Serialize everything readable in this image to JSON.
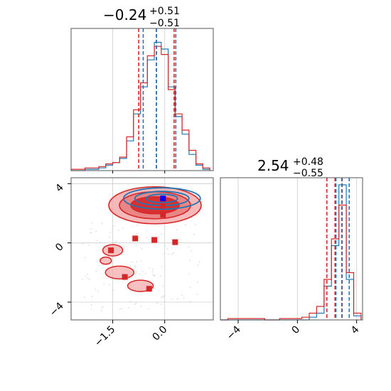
{
  "colors": {
    "red": "#d62728",
    "blue": "#1f77b4",
    "red_fill_light": "#f4a6a6",
    "red_fill_mid": "#e87b7b",
    "red_fill_dark": "#d62728",
    "blue_marker": "#0000ff",
    "grid": "#cccccc",
    "frame": "#555555"
  },
  "chart_data": {
    "type": "corner",
    "parameters": [
      {
        "title_main": "−0.24",
        "title_plus": "+0.51",
        "title_minus": "−0.51",
        "range": [
          -2.7,
          1.4
        ],
        "ticks": [
          -1.5,
          0.0
        ],
        "tick_labels": [
          "−1.5",
          "0.0"
        ],
        "quantiles_red": [
          -0.75,
          -0.24,
          0.27
        ],
        "quantiles_blue": [
          -0.62,
          -0.24,
          0.32
        ],
        "hist_bins_x": [
          -2.7,
          -2.5,
          -2.3,
          -2.1,
          -1.9,
          -1.7,
          -1.5,
          -1.3,
          -1.1,
          -0.9,
          -0.7,
          -0.5,
          -0.3,
          -0.1,
          0.1,
          0.3,
          0.5,
          0.7,
          0.9,
          1.1,
          1.3
        ],
        "hist_red": [
          0.01,
          0.01,
          0.02,
          0.02,
          0.03,
          0.05,
          0.06,
          0.1,
          0.25,
          0.45,
          0.65,
          0.85,
          0.92,
          0.86,
          0.6,
          0.42,
          0.3,
          0.15,
          0.05,
          0.02
        ],
        "hist_blue": [
          0.0,
          0.0,
          0.01,
          0.01,
          0.02,
          0.04,
          0.06,
          0.09,
          0.22,
          0.42,
          0.62,
          0.82,
          0.95,
          0.9,
          0.62,
          0.4,
          0.27,
          0.12,
          0.04,
          0.01
        ]
      },
      {
        "title_main": "2.54",
        "title_plus": "+0.48",
        "title_minus": "−0.55",
        "range": [
          -5.2,
          4.4
        ],
        "ticks": [
          -4,
          0,
          4
        ],
        "tick_labels": [
          "−4",
          "0",
          "4"
        ],
        "quantiles_red": [
          1.99,
          2.54,
          3.02
        ],
        "quantiles_blue": [
          2.6,
          3.0,
          3.5
        ],
        "hist_bins_x": [
          -5.2,
          -4.7,
          -4.2,
          -3.7,
          -3.2,
          -2.7,
          -2.2,
          -1.7,
          -1.2,
          -0.7,
          -0.2,
          0.3,
          0.8,
          1.3,
          1.8,
          2.3,
          2.8,
          3.3,
          3.8,
          4.3
        ],
        "hist_red": [
          0.0,
          0.01,
          0.01,
          0.01,
          0.01,
          0.01,
          0.0,
          0.0,
          0.01,
          0.01,
          0.01,
          0.02,
          0.05,
          0.1,
          0.3,
          0.6,
          0.85,
          0.35,
          0.05
        ],
        "hist_blue": [
          0.0,
          0.0,
          0.0,
          0.0,
          0.0,
          0.0,
          0.0,
          0.0,
          0.0,
          0.0,
          0.0,
          0.0,
          0.02,
          0.05,
          0.25,
          0.55,
          1.0,
          0.3,
          0.03
        ]
      }
    ],
    "scatter_markers": {
      "red_squares": [
        [
          -0.05,
          2.5
        ],
        [
          -0.05,
          1.9
        ],
        [
          -0.85,
          0.3
        ],
        [
          -0.3,
          0.2
        ],
        [
          0.3,
          0.05
        ],
        [
          -1.55,
          -0.5
        ],
        [
          -1.15,
          -2.3
        ],
        [
          -0.45,
          -3.1
        ]
      ],
      "blue_squares": [
        [
          -0.05,
          3.0
        ]
      ]
    },
    "contours": {
      "red_filled_levels": 3,
      "blue_levels": 3,
      "center": [
        -0.24,
        2.54
      ]
    }
  }
}
